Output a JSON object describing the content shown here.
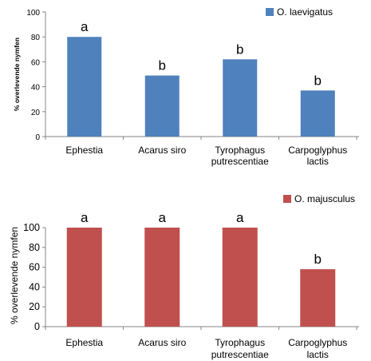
{
  "colors": {
    "series_blue": "#4f81bd",
    "series_red": "#c0504d",
    "axis": "#868686"
  },
  "chart_data": [
    {
      "type": "bar",
      "categories": [
        "Ephestia",
        "Acarus siro",
        "Tyrophagus putrescentiae",
        "Carpoglyphus lactis"
      ],
      "category_lines": [
        [
          "Ephestia"
        ],
        [
          "Acarus siro"
        ],
        [
          "Tyrophagus",
          "putrescentiae"
        ],
        [
          "Carpoglyphus",
          "lactis"
        ]
      ],
      "series": [
        {
          "name": "O. laevigatus",
          "values": [
            80,
            49,
            62,
            37
          ]
        }
      ],
      "significance_labels": [
        "a",
        "b",
        "b",
        "b"
      ],
      "title": "",
      "xlabel": "",
      "ylabel": "% overlevende nymfen",
      "ylim": [
        0,
        100
      ],
      "yticks": [
        0,
        20,
        40,
        60,
        80,
        100
      ],
      "grid": false,
      "legend_position": "top-right"
    },
    {
      "type": "bar",
      "categories": [
        "Ephestia",
        "Acarus siro",
        "Tyrophagus putrescentiae",
        "Carpoglyphus lactis"
      ],
      "category_lines": [
        [
          "Ephestia"
        ],
        [
          "Acarus siro"
        ],
        [
          "Tyrophagus",
          "putrescentiae"
        ],
        [
          "Carpoglyphus",
          "lactis"
        ]
      ],
      "series": [
        {
          "name": "O. majusculus",
          "values": [
            100,
            100,
            100,
            58
          ]
        }
      ],
      "significance_labels": [
        "a",
        "a",
        "a",
        "b"
      ],
      "title": "",
      "xlabel": "",
      "ylabel": "% overlevende nymfen",
      "ylim": [
        0,
        100
      ],
      "yticks": [
        0,
        20,
        40,
        60,
        80,
        100
      ],
      "grid": false,
      "legend_position": "top-right"
    }
  ]
}
